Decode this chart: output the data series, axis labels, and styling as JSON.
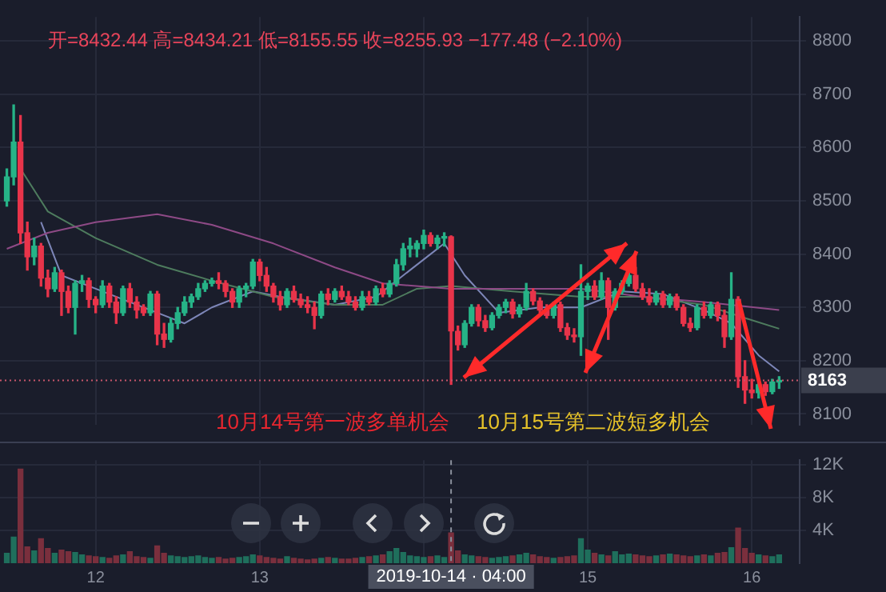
{
  "chart_data": [
    {
      "type": "candlestick",
      "subtitle": "开=8432.44  高=8434.21  低=8155.55  收=8255.93  −177.48 (−2.10%)",
      "x": [
        "2019-10-11T11:00",
        "2019-10-11T12:00",
        "2019-10-11T13:00",
        "2019-10-11T14:00",
        "2019-10-11T15:00",
        "2019-10-11T16:00",
        "2019-10-11T17:00",
        "2019-10-11T18:00",
        "2019-10-11T19:00",
        "2019-10-11T20:00",
        "2019-10-11T21:00",
        "2019-10-11T22:00",
        "2019-10-11T23:00",
        "2019-10-12T00:00",
        "2019-10-12T01:00",
        "2019-10-12T02:00",
        "2019-10-12T03:00",
        "2019-10-12T04:00",
        "2019-10-12T05:00",
        "2019-10-12T06:00",
        "2019-10-12T07:00",
        "2019-10-12T08:00",
        "2019-10-12T09:00",
        "2019-10-12T10:00",
        "2019-10-12T11:00",
        "2019-10-12T12:00",
        "2019-10-12T13:00",
        "2019-10-12T14:00",
        "2019-10-12T15:00",
        "2019-10-12T16:00",
        "2019-10-12T17:00",
        "2019-10-12T18:00",
        "2019-10-12T19:00",
        "2019-10-12T20:00",
        "2019-10-12T21:00",
        "2019-10-12T22:00",
        "2019-10-12T23:00",
        "2019-10-13T00:00",
        "2019-10-13T01:00",
        "2019-10-13T02:00",
        "2019-10-13T03:00",
        "2019-10-13T04:00",
        "2019-10-13T05:00",
        "2019-10-13T06:00",
        "2019-10-13T07:00",
        "2019-10-13T08:00",
        "2019-10-13T09:00",
        "2019-10-13T10:00",
        "2019-10-13T11:00",
        "2019-10-13T12:00",
        "2019-10-13T13:00",
        "2019-10-13T14:00",
        "2019-10-13T15:00",
        "2019-10-13T16:00",
        "2019-10-13T17:00",
        "2019-10-13T18:00",
        "2019-10-13T19:00",
        "2019-10-13T20:00",
        "2019-10-13T21:00",
        "2019-10-13T22:00",
        "2019-10-13T23:00",
        "2019-10-14T00:00",
        "2019-10-14T01:00",
        "2019-10-14T02:00",
        "2019-10-14T03:00",
        "2019-10-14T04:00",
        "2019-10-14T05:00",
        "2019-10-14T06:00",
        "2019-10-14T07:00",
        "2019-10-14T08:00",
        "2019-10-14T09:00",
        "2019-10-14T10:00",
        "2019-10-14T11:00",
        "2019-10-14T12:00",
        "2019-10-14T13:00",
        "2019-10-14T14:00",
        "2019-10-14T15:00",
        "2019-10-14T16:00",
        "2019-10-14T17:00",
        "2019-10-14T18:00",
        "2019-10-14T19:00",
        "2019-10-14T20:00",
        "2019-10-14T21:00",
        "2019-10-14T22:00",
        "2019-10-14T23:00",
        "2019-10-15T00:00",
        "2019-10-15T01:00",
        "2019-10-15T02:00",
        "2019-10-15T03:00",
        "2019-10-15T04:00",
        "2019-10-15T05:00",
        "2019-10-15T06:00",
        "2019-10-15T07:00",
        "2019-10-15T08:00",
        "2019-10-15T09:00",
        "2019-10-15T10:00",
        "2019-10-15T11:00",
        "2019-10-15T12:00",
        "2019-10-15T13:00",
        "2019-10-15T14:00",
        "2019-10-15T15:00",
        "2019-10-15T16:00",
        "2019-10-15T17:00",
        "2019-10-15T18:00",
        "2019-10-15T19:00",
        "2019-10-15T20:00",
        "2019-10-15T21:00",
        "2019-10-15T22:00",
        "2019-10-15T23:00",
        "2019-10-16T00:00",
        "2019-10-16T01:00",
        "2019-10-16T02:00",
        "2019-10-16T03:00",
        "2019-10-16T04:00"
      ],
      "ohlc": [
        [
          8500,
          8560,
          8490,
          8545
        ],
        [
          8545,
          8680,
          8530,
          8610
        ],
        [
          8610,
          8660,
          8420,
          8440
        ],
        [
          8440,
          8460,
          8370,
          8395
        ],
        [
          8395,
          8430,
          8380,
          8415
        ],
        [
          8415,
          8420,
          8340,
          8355
        ],
        [
          8355,
          8370,
          8320,
          8335
        ],
        [
          8335,
          8375,
          8330,
          8365
        ],
        [
          8365,
          8370,
          8285,
          8330
        ],
        [
          8330,
          8340,
          8290,
          8300
        ],
        [
          8300,
          8350,
          8250,
          8345
        ],
        [
          8345,
          8360,
          8330,
          8350
        ],
        [
          8350,
          8355,
          8300,
          8315
        ],
        [
          8315,
          8320,
          8290,
          8305
        ],
        [
          8305,
          8350,
          8300,
          8340
        ],
        [
          8340,
          8345,
          8300,
          8310
        ],
        [
          8310,
          8320,
          8270,
          8290
        ],
        [
          8290,
          8340,
          8285,
          8335
        ],
        [
          8335,
          8345,
          8300,
          8310
        ],
        [
          8310,
          8320,
          8280,
          8295
        ],
        [
          8300,
          8305,
          8285,
          8290
        ],
        [
          8290,
          8330,
          8285,
          8325
        ],
        [
          8325,
          8330,
          8230,
          8250
        ],
        [
          8250,
          8270,
          8225,
          8240
        ],
        [
          8240,
          8280,
          8235,
          8270
        ],
        [
          8270,
          8300,
          8260,
          8290
        ],
        [
          8290,
          8320,
          8285,
          8310
        ],
        [
          8310,
          8325,
          8300,
          8320
        ],
        [
          8320,
          8345,
          8315,
          8335
        ],
        [
          8335,
          8350,
          8330,
          8345
        ],
        [
          8345,
          8355,
          8340,
          8350
        ],
        [
          8350,
          8365,
          8335,
          8345
        ],
        [
          8345,
          8350,
          8320,
          8330
        ],
        [
          8330,
          8335,
          8300,
          8310
        ],
        [
          8310,
          8340,
          8300,
          8335
        ],
        [
          8335,
          8345,
          8320,
          8340
        ],
        [
          8340,
          8390,
          8335,
          8385
        ],
        [
          8385,
          8390,
          8350,
          8360
        ],
        [
          8360,
          8375,
          8330,
          8340
        ],
        [
          8340,
          8345,
          8310,
          8320
        ],
        [
          8320,
          8330,
          8295,
          8305
        ],
        [
          8305,
          8335,
          8300,
          8330
        ],
        [
          8330,
          8340,
          8310,
          8315
        ],
        [
          8315,
          8325,
          8300,
          8305
        ],
        [
          8305,
          8320,
          8290,
          8300
        ],
        [
          8300,
          8310,
          8260,
          8285
        ],
        [
          8285,
          8330,
          8280,
          8325
        ],
        [
          8325,
          8335,
          8305,
          8315
        ],
        [
          8315,
          8335,
          8310,
          8330
        ],
        [
          8330,
          8340,
          8315,
          8320
        ],
        [
          8320,
          8330,
          8305,
          8310
        ],
        [
          8310,
          8320,
          8295,
          8300
        ],
        [
          8300,
          8330,
          8295,
          8320
        ],
        [
          8320,
          8330,
          8305,
          8310
        ],
        [
          8310,
          8340,
          8305,
          8335
        ],
        [
          8335,
          8345,
          8320,
          8325
        ],
        [
          8325,
          8350,
          8320,
          8345
        ],
        [
          8345,
          8390,
          8340,
          8380
        ],
        [
          8380,
          8420,
          8370,
          8410
        ],
        [
          8410,
          8430,
          8395,
          8415
        ],
        [
          8410,
          8425,
          8395,
          8420
        ],
        [
          8420,
          8445,
          8410,
          8435
        ],
        [
          8435,
          8440,
          8415,
          8420
        ],
        [
          8420,
          8435,
          8410,
          8430
        ],
        [
          8430,
          8440,
          8415,
          8432
        ],
        [
          8432.44,
          8434.21,
          8155.55,
          8255.93
        ],
        [
          8255,
          8265,
          8220,
          8230
        ],
        [
          8230,
          8275,
          8225,
          8270
        ],
        [
          8270,
          8305,
          8265,
          8300
        ],
        [
          8300,
          8305,
          8265,
          8275
        ],
        [
          8275,
          8285,
          8255,
          8262
        ],
        [
          8262,
          8290,
          8258,
          8285
        ],
        [
          8285,
          8305,
          8280,
          8300
        ],
        [
          8300,
          8315,
          8290,
          8310
        ],
        [
          8310,
          8315,
          8280,
          8288
        ],
        [
          8288,
          8305,
          8282,
          8300
        ],
        [
          8300,
          8345,
          8295,
          8330
        ],
        [
          8330,
          8335,
          8305,
          8312
        ],
        [
          8312,
          8318,
          8290,
          8295
        ],
        [
          8295,
          8305,
          8280,
          8285
        ],
        [
          8285,
          8310,
          8280,
          8305
        ],
        [
          8305,
          8310,
          8255,
          8262
        ],
        [
          8262,
          8270,
          8240,
          8248
        ],
        [
          8248,
          8260,
          8235,
          8245
        ],
        [
          8245,
          8380,
          8210,
          8330
        ],
        [
          8330,
          8345,
          8315,
          8340
        ],
        [
          8340,
          8350,
          8315,
          8320
        ],
        [
          8320,
          8365,
          8315,
          8350
        ],
        [
          8350,
          8355,
          8240,
          8300
        ],
        [
          8300,
          8335,
          8295,
          8330
        ],
        [
          8330,
          8350,
          8325,
          8345
        ],
        [
          8345,
          8365,
          8340,
          8360
        ],
        [
          8360,
          8375,
          8330,
          8335
        ],
        [
          8335,
          8345,
          8315,
          8320
        ],
        [
          8320,
          8335,
          8305,
          8310
        ],
        [
          8310,
          8330,
          8305,
          8325
        ],
        [
          8325,
          8330,
          8300,
          8305
        ],
        [
          8305,
          8325,
          8300,
          8320
        ],
        [
          8320,
          8325,
          8295,
          8300
        ],
        [
          8300,
          8305,
          8265,
          8270
        ],
        [
          8270,
          8280,
          8255,
          8262
        ],
        [
          8262,
          8305,
          8258,
          8300
        ],
        [
          8300,
          8310,
          8280,
          8285
        ],
        [
          8285,
          8310,
          8280,
          8305
        ],
        [
          8305,
          8310,
          8275,
          8285
        ],
        [
          8285,
          8295,
          8225,
          8245
        ],
        [
          8245,
          8365,
          8240,
          8315
        ],
        [
          8315,
          8320,
          8150,
          8170
        ],
        [
          8170,
          8200,
          8120,
          8145
        ],
        [
          8145,
          8165,
          8130,
          8140
        ],
        [
          8140,
          8160,
          8130,
          8155
        ],
        [
          8155,
          8160,
          8135,
          8142
        ],
        [
          8142,
          8165,
          8138,
          8160
        ],
        [
          8160,
          8170,
          8148,
          8163
        ]
      ],
      "colors": [
        "#26b387",
        "#26b387",
        "#e8344a",
        "#e8344a",
        "#26b387",
        "#e8344a",
        "#e8344a",
        "#26b387",
        "#e8344a",
        "#e8344a",
        "#26b387",
        "#26b387",
        "#e8344a",
        "#e8344a",
        "#26b387",
        "#e8344a",
        "#e8344a",
        "#26b387",
        "#e8344a",
        "#e8344a",
        "#e8344a",
        "#26b387",
        "#e8344a",
        "#e8344a",
        "#26b387",
        "#26b387",
        "#26b387",
        "#26b387",
        "#26b387",
        "#26b387",
        "#26b387",
        "#e8344a",
        "#e8344a",
        "#e8344a",
        "#26b387",
        "#26b387",
        "#26b387",
        "#e8344a",
        "#e8344a",
        "#e8344a",
        "#e8344a",
        "#26b387",
        "#e8344a",
        "#e8344a",
        "#e8344a",
        "#e8344a",
        "#26b387",
        "#e8344a",
        "#26b387",
        "#e8344a",
        "#e8344a",
        "#e8344a",
        "#26b387",
        "#e8344a",
        "#26b387",
        "#e8344a",
        "#26b387",
        "#26b387",
        "#26b387",
        "#26b387",
        "#26b387",
        "#26b387",
        "#e8344a",
        "#26b387",
        "#26b387",
        "#e8344a",
        "#e8344a",
        "#26b387",
        "#26b387",
        "#e8344a",
        "#e8344a",
        "#26b387",
        "#26b387",
        "#26b387",
        "#e8344a",
        "#26b387",
        "#26b387",
        "#e8344a",
        "#e8344a",
        "#e8344a",
        "#26b387",
        "#e8344a",
        "#e8344a",
        "#e8344a",
        "#26b387",
        "#26b387",
        "#e8344a",
        "#26b387",
        "#e8344a",
        "#26b387",
        "#26b387",
        "#26b387",
        "#e8344a",
        "#e8344a",
        "#e8344a",
        "#26b387",
        "#e8344a",
        "#26b387",
        "#e8344a",
        "#e8344a",
        "#e8344a",
        "#26b387",
        "#e8344a",
        "#26b387",
        "#e8344a",
        "#e8344a",
        "#26b387",
        "#e8344a",
        "#e8344a",
        "#e8344a",
        "#26b387",
        "#e8344a",
        "#26b387",
        "#26b387"
      ],
      "series": [
        {
          "type": "line",
          "color": "#8e4a86",
          "x": [
            "2019-10-11T11:00",
            "2019-10-11T17:00",
            "2019-10-12T00:00",
            "2019-10-12T09:00",
            "2019-10-12T17:00",
            "2019-10-13T02:00",
            "2019-10-13T11:00",
            "2019-10-13T18:00",
            "2019-10-14T04:00",
            "2019-10-14T13:00",
            "2019-10-14T23:00",
            "2019-10-15T08:00",
            "2019-10-15T17:00",
            "2019-10-16T04:00"
          ],
          "values": [
            8410,
            8440,
            8460,
            8475,
            8455,
            8420,
            8375,
            8345,
            8335,
            8335,
            8335,
            8320,
            8310,
            8295
          ]
        },
        {
          "type": "line",
          "color": "#4e7c5e",
          "x": [
            "2019-10-11T13:00",
            "2019-10-11T17:00",
            "2019-10-12T00:00",
            "2019-10-12T09:00",
            "2019-10-12T17:00",
            "2019-10-13T02:00",
            "2019-10-13T11:00",
            "2019-10-13T18:00",
            "2019-10-13T23:00",
            "2019-10-14T04:00",
            "2019-10-14T13:00",
            "2019-10-14T23:00",
            "2019-10-15T08:00",
            "2019-10-15T17:00",
            "2019-10-15T23:00",
            "2019-10-16T04:00"
          ],
          "values": [
            8560,
            8480,
            8430,
            8380,
            8350,
            8320,
            8305,
            8305,
            8335,
            8340,
            8330,
            8320,
            8320,
            8305,
            8280,
            8260
          ]
        },
        {
          "type": "line",
          "color": "#7d86b8",
          "x": [
            "2019-10-11T16:00",
            "2019-10-11T19:00",
            "2019-10-12T00:00",
            "2019-10-12T05:00",
            "2019-10-12T09:00",
            "2019-10-12T13:00",
            "2019-10-12T17:00",
            "2019-10-12T23:00",
            "2019-10-13T03:00",
            "2019-10-13T11:00",
            "2019-10-13T17:00",
            "2019-10-13T20:00",
            "2019-10-14T01:00",
            "2019-10-14T03:00",
            "2019-10-14T06:00",
            "2019-10-14T11:00",
            "2019-10-14T17:00",
            "2019-10-14T23:00",
            "2019-10-15T05:00",
            "2019-10-15T11:00",
            "2019-10-15T17:00",
            "2019-10-15T21:00",
            "2019-10-16T01:00",
            "2019-10-16T04:00"
          ],
          "values": [
            8460,
            8360,
            8335,
            8310,
            8290,
            8270,
            8300,
            8330,
            8320,
            8305,
            8320,
            8350,
            8400,
            8420,
            8360,
            8290,
            8300,
            8300,
            8330,
            8325,
            8295,
            8270,
            8210,
            8180
          ]
        }
      ],
      "xlim": [
        "2019-10-11T10:00",
        "2019-10-16T07:00"
      ],
      "xticks": [
        {
          "value": "2019-10-12T00:00",
          "label": null
        },
        {
          "value": "2019-10-13T00:00",
          "label": null
        },
        {
          "value": "2019-10-14T00:00",
          "label": null
        },
        {
          "value": "2019-10-15T00:00",
          "label": null
        },
        {
          "value": "2019-10-16T00:00",
          "label": null
        }
      ],
      "ylim": [
        8080,
        8845
      ],
      "yticks": [
        8100,
        8200,
        8300,
        8400,
        8500,
        8600,
        8700,
        8800
      ],
      "ref_lines": [
        {
          "axis": "y",
          "value": 8163,
          "label": "8163",
          "color": "#c8566a",
          "line_style": "dotted"
        }
      ],
      "annotations": [
        "10月14号第一波多单机会",
        "10月15号第二波短多机会"
      ],
      "grid": true,
      "tick_labels": "y"
    },
    {
      "type": "bar",
      "x": [
        "2019-10-11T11:00",
        "2019-10-11T12:00",
        "2019-10-11T13:00",
        "2019-10-11T14:00",
        "2019-10-11T15:00",
        "2019-10-11T16:00",
        "2019-10-11T17:00",
        "2019-10-11T18:00",
        "2019-10-11T19:00",
        "2019-10-11T20:00",
        "2019-10-11T21:00",
        "2019-10-11T22:00",
        "2019-10-11T23:00",
        "2019-10-12T00:00",
        "2019-10-12T01:00",
        "2019-10-12T02:00",
        "2019-10-12T03:00",
        "2019-10-12T04:00",
        "2019-10-12T05:00",
        "2019-10-12T06:00",
        "2019-10-12T07:00",
        "2019-10-12T08:00",
        "2019-10-12T09:00",
        "2019-10-12T10:00",
        "2019-10-12T11:00",
        "2019-10-12T12:00",
        "2019-10-12T13:00",
        "2019-10-12T14:00",
        "2019-10-12T15:00",
        "2019-10-12T16:00",
        "2019-10-12T17:00",
        "2019-10-12T18:00",
        "2019-10-12T19:00",
        "2019-10-12T20:00",
        "2019-10-12T21:00",
        "2019-10-12T22:00",
        "2019-10-12T23:00",
        "2019-10-13T00:00",
        "2019-10-13T01:00",
        "2019-10-13T02:00",
        "2019-10-13T03:00",
        "2019-10-13T04:00",
        "2019-10-13T05:00",
        "2019-10-13T06:00",
        "2019-10-13T07:00",
        "2019-10-13T08:00",
        "2019-10-13T09:00",
        "2019-10-13T10:00",
        "2019-10-13T11:00",
        "2019-10-13T12:00",
        "2019-10-13T13:00",
        "2019-10-13T14:00",
        "2019-10-13T15:00",
        "2019-10-13T16:00",
        "2019-10-13T17:00",
        "2019-10-13T18:00",
        "2019-10-13T19:00",
        "2019-10-13T20:00",
        "2019-10-13T21:00",
        "2019-10-13T22:00",
        "2019-10-13T23:00",
        "2019-10-14T00:00",
        "2019-10-14T01:00",
        "2019-10-14T02:00",
        "2019-10-14T03:00",
        "2019-10-14T04:00",
        "2019-10-14T05:00",
        "2019-10-14T06:00",
        "2019-10-14T07:00",
        "2019-10-14T08:00",
        "2019-10-14T09:00",
        "2019-10-14T10:00",
        "2019-10-14T11:00",
        "2019-10-14T12:00",
        "2019-10-14T13:00",
        "2019-10-14T14:00",
        "2019-10-14T15:00",
        "2019-10-14T16:00",
        "2019-10-14T17:00",
        "2019-10-14T18:00",
        "2019-10-14T19:00",
        "2019-10-14T20:00",
        "2019-10-14T21:00",
        "2019-10-14T22:00",
        "2019-10-14T23:00",
        "2019-10-15T00:00",
        "2019-10-15T01:00",
        "2019-10-15T02:00",
        "2019-10-15T03:00",
        "2019-10-15T04:00",
        "2019-10-15T05:00",
        "2019-10-15T06:00",
        "2019-10-15T07:00",
        "2019-10-15T08:00",
        "2019-10-15T09:00",
        "2019-10-15T10:00",
        "2019-10-15T11:00",
        "2019-10-15T12:00",
        "2019-10-15T13:00",
        "2019-10-15T14:00",
        "2019-10-15T15:00",
        "2019-10-15T16:00",
        "2019-10-15T17:00",
        "2019-10-15T18:00",
        "2019-10-15T19:00",
        "2019-10-15T20:00",
        "2019-10-15T21:00",
        "2019-10-15T22:00",
        "2019-10-15T23:00",
        "2019-10-16T00:00",
        "2019-10-16T01:00",
        "2019-10-16T02:00",
        "2019-10-16T03:00",
        "2019-10-16T04:00"
      ],
      "values": [
        1200,
        3200,
        11500,
        2000,
        1500,
        3000,
        1800,
        1200,
        1600,
        1400,
        1300,
        1000,
        900,
        800,
        700,
        600,
        900,
        1000,
        1400,
        800,
        700,
        600,
        2100,
        1200,
        900,
        800,
        700,
        800,
        900,
        700,
        600,
        700,
        500,
        600,
        700,
        800,
        1000,
        900,
        700,
        600,
        500,
        800,
        600,
        500,
        400,
        500,
        600,
        700,
        600,
        500,
        500,
        600,
        700,
        800,
        900,
        1000,
        1400,
        1800,
        1300,
        900,
        800,
        700,
        800,
        900,
        700,
        3700,
        1500,
        1000,
        900,
        800,
        700,
        600,
        700,
        800,
        900,
        1000,
        1200,
        1000,
        800,
        700,
        600,
        700,
        800,
        900,
        3000,
        1600,
        1200,
        1000,
        900,
        1400,
        1000,
        1100,
        1000,
        900,
        800,
        900,
        1000,
        1100,
        1000,
        900,
        800,
        900,
        1000,
        900,
        1200,
        1300,
        1900,
        4300,
        1800,
        1200,
        1000,
        900,
        800,
        1000
      ],
      "colors": [
        "#1f6f5c",
        "#1f6f5c",
        "#7a2f3d",
        "#7a2f3d",
        "#1f6f5c",
        "#7a2f3d",
        "#7a2f3d",
        "#1f6f5c",
        "#7a2f3d",
        "#7a2f3d",
        "#1f6f5c",
        "#1f6f5c",
        "#7a2f3d",
        "#7a2f3d",
        "#1f6f5c",
        "#7a2f3d",
        "#7a2f3d",
        "#1f6f5c",
        "#7a2f3d",
        "#7a2f3d",
        "#7a2f3d",
        "#1f6f5c",
        "#7a2f3d",
        "#7a2f3d",
        "#1f6f5c",
        "#1f6f5c",
        "#1f6f5c",
        "#1f6f5c",
        "#1f6f5c",
        "#1f6f5c",
        "#1f6f5c",
        "#7a2f3d",
        "#7a2f3d",
        "#7a2f3d",
        "#1f6f5c",
        "#1f6f5c",
        "#1f6f5c",
        "#7a2f3d",
        "#7a2f3d",
        "#7a2f3d",
        "#7a2f3d",
        "#1f6f5c",
        "#7a2f3d",
        "#7a2f3d",
        "#7a2f3d",
        "#7a2f3d",
        "#1f6f5c",
        "#7a2f3d",
        "#1f6f5c",
        "#7a2f3d",
        "#7a2f3d",
        "#7a2f3d",
        "#1f6f5c",
        "#7a2f3d",
        "#1f6f5c",
        "#7a2f3d",
        "#1f6f5c",
        "#1f6f5c",
        "#1f6f5c",
        "#1f6f5c",
        "#1f6f5c",
        "#1f6f5c",
        "#7a2f3d",
        "#1f6f5c",
        "#1f6f5c",
        "#7a2f3d",
        "#7a2f3d",
        "#1f6f5c",
        "#1f6f5c",
        "#7a2f3d",
        "#7a2f3d",
        "#1f6f5c",
        "#1f6f5c",
        "#1f6f5c",
        "#7a2f3d",
        "#1f6f5c",
        "#1f6f5c",
        "#7a2f3d",
        "#7a2f3d",
        "#7a2f3d",
        "#1f6f5c",
        "#7a2f3d",
        "#7a2f3d",
        "#7a2f3d",
        "#1f6f5c",
        "#1f6f5c",
        "#7a2f3d",
        "#1f6f5c",
        "#7a2f3d",
        "#1f6f5c",
        "#1f6f5c",
        "#1f6f5c",
        "#7a2f3d",
        "#7a2f3d",
        "#7a2f3d",
        "#1f6f5c",
        "#7a2f3d",
        "#1f6f5c",
        "#7a2f3d",
        "#7a2f3d",
        "#7a2f3d",
        "#1f6f5c",
        "#7a2f3d",
        "#1f6f5c",
        "#7a2f3d",
        "#7a2f3d",
        "#1f6f5c",
        "#7a2f3d",
        "#7a2f3d",
        "#7a2f3d",
        "#1f6f5c",
        "#7a2f3d",
        "#1f6f5c",
        "#1f6f5c"
      ],
      "xlim": [
        "2019-10-11T10:00",
        "2019-10-16T07:00"
      ],
      "xticks": [
        {
          "value": "2019-10-12T00:00",
          "label": "12"
        },
        {
          "value": "2019-10-13T00:00",
          "label": "13"
        },
        {
          "value": "2019-10-14T00:00",
          "label": null
        },
        {
          "value": "2019-10-15T00:00",
          "label": "15"
        },
        {
          "value": "2019-10-16T00:00",
          "label": "16"
        }
      ],
      "ylim": [
        0,
        12600
      ],
      "yticks": [
        {
          "value": 4000,
          "label": "4K"
        },
        {
          "value": 8000,
          "label": "8K"
        },
        {
          "value": 12000,
          "label": "12K"
        }
      ],
      "annotations": [
        {
          "text": "2019-10-14 · 04:00",
          "x": "2019-10-14T04:00"
        }
      ],
      "grid": true
    }
  ]
}
